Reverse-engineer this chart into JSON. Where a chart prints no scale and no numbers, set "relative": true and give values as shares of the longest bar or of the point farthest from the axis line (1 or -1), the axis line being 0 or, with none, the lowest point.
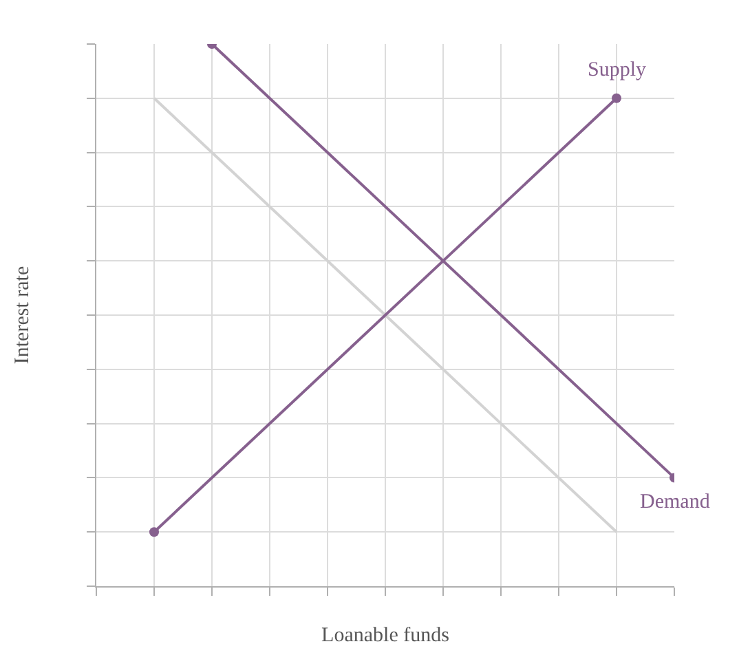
{
  "chart_data": {
    "type": "line",
    "relative": true,
    "xlabel": "Loanable funds",
    "ylabel": "Interest rate",
    "categories": [
      null,
      null,
      null,
      null,
      null,
      null,
      null,
      null,
      null,
      null,
      null
    ],
    "series": [
      {
        "color": "#d3d3d3",
        "marker": "none",
        "values": [
          null,
          0.9,
          null,
          null,
          null,
          null,
          null,
          null,
          null,
          0.1,
          null
        ]
      },
      {
        "name": "Supply",
        "color": "#86608e",
        "marker": "circle",
        "values": [
          null,
          0.1,
          null,
          null,
          null,
          null,
          null,
          null,
          null,
          0.9,
          null
        ]
      },
      {
        "name": "Demand",
        "color": "#86608e",
        "marker": "circle",
        "values": [
          null,
          null,
          1,
          null,
          null,
          null,
          null,
          null,
          null,
          null,
          0.2
        ]
      }
    ],
    "grid": true,
    "legend": false,
    "tick_labels": false,
    "line_style": "solid"
  }
}
